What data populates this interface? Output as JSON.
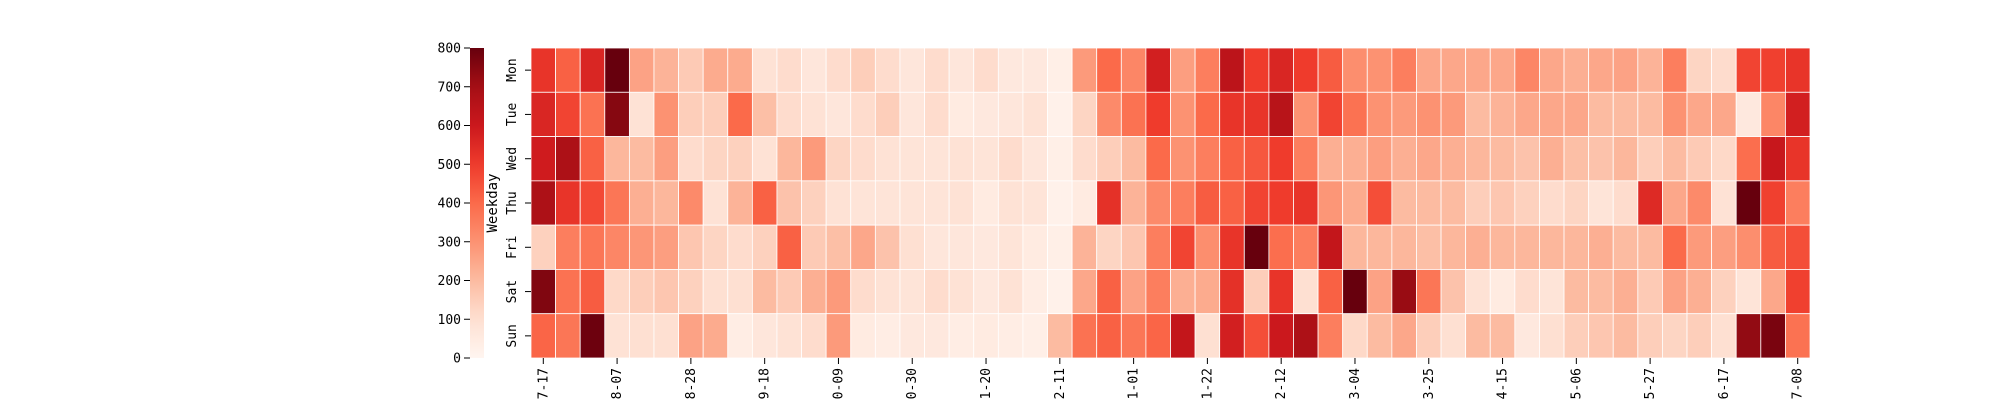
{
  "chart_data": {
    "type": "heatmap",
    "title": "",
    "ylabel": "Weekday",
    "rows": [
      "Mon",
      "Tue",
      "Wed",
      "Thu",
      "Fri",
      "Sat",
      "Sun"
    ],
    "x_tick_labels": [
      "7-17",
      "8-07",
      "8-28",
      "9-18",
      "0-09",
      "0-30",
      "1-20",
      "2-11",
      "1-01",
      "1-22",
      "2-12",
      "3-04",
      "3-25",
      "4-15",
      "5-06",
      "5-27",
      "6-17",
      "7-08"
    ],
    "x_tick_columns": [
      0,
      3,
      6,
      9,
      12,
      15,
      18,
      21,
      24,
      27,
      30,
      33,
      36,
      39,
      42,
      45,
      48,
      51
    ],
    "colorbar": {
      "min": 0,
      "max": 800,
      "ticks": [
        0,
        100,
        200,
        300,
        400,
        500,
        600,
        700,
        800
      ],
      "colormap": "Reds"
    },
    "values": [
      [
        520,
        420,
        560,
        800,
        260,
        220,
        160,
        240,
        240,
        90,
        110,
        70,
        110,
        150,
        110,
        70,
        110,
        70,
        110,
        60,
        60,
        30,
        280,
        400,
        330,
        580,
        270,
        350,
        640,
        500,
        560,
        500,
        430,
        310,
        300,
        350,
        250,
        250,
        250,
        250,
        330,
        250,
        230,
        250,
        260,
        220,
        350,
        130,
        110,
        480,
        490,
        520
      ],
      [
        560,
        480,
        380,
        750,
        90,
        300,
        150,
        150,
        400,
        190,
        110,
        90,
        70,
        110,
        150,
        70,
        110,
        50,
        60,
        70,
        90,
        20,
        130,
        320,
        380,
        500,
        300,
        400,
        520,
        520,
        650,
        300,
        480,
        380,
        300,
        280,
        300,
        280,
        200,
        220,
        250,
        250,
        250,
        200,
        200,
        200,
        300,
        250,
        250,
        60,
        330,
        580
      ],
      [
        590,
        680,
        420,
        210,
        200,
        270,
        110,
        130,
        140,
        90,
        210,
        280,
        130,
        110,
        90,
        80,
        80,
        90,
        80,
        110,
        70,
        30,
        110,
        150,
        200,
        400,
        300,
        350,
        420,
        440,
        500,
        350,
        230,
        230,
        270,
        230,
        250,
        230,
        210,
        200,
        180,
        230,
        190,
        180,
        210,
        150,
        200,
        160,
        120,
        390,
        610,
        520
      ],
      [
        680,
        520,
        470,
        370,
        230,
        210,
        320,
        90,
        220,
        420,
        180,
        140,
        90,
        80,
        80,
        80,
        80,
        90,
        50,
        90,
        80,
        20,
        50,
        530,
        220,
        320,
        350,
        430,
        420,
        480,
        500,
        520,
        290,
        240,
        460,
        200,
        200,
        200,
        150,
        170,
        140,
        110,
        130,
        80,
        110,
        550,
        250,
        320,
        90,
        800,
        490,
        350
      ],
      [
        140,
        350,
        370,
        330,
        290,
        270,
        170,
        130,
        110,
        140,
        420,
        160,
        190,
        250,
        180,
        100,
        70,
        70,
        60,
        80,
        50,
        30,
        220,
        130,
        170,
        350,
        480,
        310,
        520,
        800,
        390,
        350,
        620,
        210,
        210,
        210,
        190,
        210,
        230,
        210,
        210,
        210,
        210,
        230,
        200,
        200,
        400,
        280,
        270,
        310,
        430,
        460
      ],
      [
        760,
        380,
        430,
        120,
        150,
        170,
        140,
        100,
        100,
        200,
        160,
        230,
        280,
        110,
        90,
        80,
        110,
        90,
        60,
        90,
        40,
        20,
        250,
        420,
        260,
        350,
        230,
        240,
        530,
        150,
        520,
        100,
        420,
        800,
        260,
        720,
        370,
        180,
        90,
        50,
        110,
        80,
        200,
        200,
        230,
        160,
        260,
        230,
        140,
        80,
        250,
        490
      ],
      [
        410,
        370,
        790,
        90,
        100,
        100,
        260,
        240,
        40,
        70,
        90,
        110,
        280,
        50,
        40,
        60,
        60,
        40,
        50,
        40,
        30,
        200,
        380,
        420,
        370,
        410,
        620,
        100,
        580,
        460,
        600,
        680,
        350,
        120,
        200,
        250,
        150,
        100,
        200,
        200,
        60,
        100,
        150,
        170,
        200,
        150,
        130,
        150,
        100,
        730,
        770,
        380
      ]
    ]
  }
}
